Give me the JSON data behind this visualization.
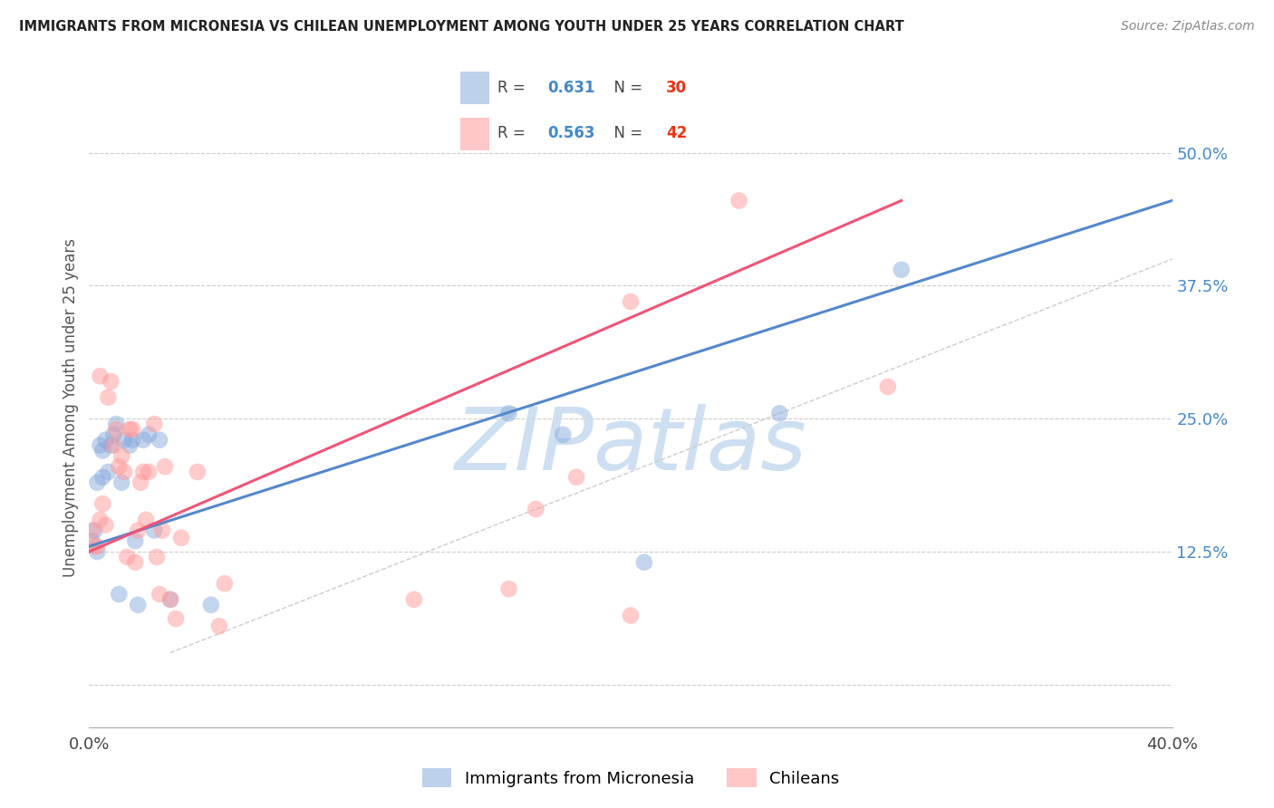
{
  "title": "IMMIGRANTS FROM MICRONESIA VS CHILEAN UNEMPLOYMENT AMONG YOUTH UNDER 25 YEARS CORRELATION CHART",
  "source": "Source: ZipAtlas.com",
  "ylabel": "Unemployment Among Youth under 25 years",
  "xlim": [
    0.0,
    0.4
  ],
  "ylim": [
    -0.04,
    0.56
  ],
  "xticks": [
    0.0,
    0.1,
    0.2,
    0.3,
    0.4
  ],
  "yticks_right": [
    0.0,
    0.125,
    0.25,
    0.375,
    0.5
  ],
  "ytick_labels_right": [
    "",
    "12.5%",
    "25.0%",
    "37.5%",
    "50.0%"
  ],
  "blue_R": "0.631",
  "blue_N": "30",
  "pink_R": "0.563",
  "pink_N": "42",
  "blue_color": "#88AADD",
  "pink_color": "#FF9999",
  "blue_legend": "Immigrants from Micronesia",
  "pink_legend": "Chileans",
  "blue_scatter_x": [
    0.001,
    0.002,
    0.003,
    0.003,
    0.004,
    0.005,
    0.005,
    0.006,
    0.007,
    0.008,
    0.009,
    0.01,
    0.011,
    0.012,
    0.013,
    0.015,
    0.016,
    0.017,
    0.018,
    0.02,
    0.022,
    0.024,
    0.026,
    0.03,
    0.045,
    0.155,
    0.175,
    0.205,
    0.255,
    0.3
  ],
  "blue_scatter_y": [
    0.135,
    0.145,
    0.125,
    0.19,
    0.225,
    0.22,
    0.195,
    0.23,
    0.2,
    0.225,
    0.235,
    0.245,
    0.085,
    0.19,
    0.23,
    0.225,
    0.23,
    0.135,
    0.075,
    0.23,
    0.235,
    0.145,
    0.23,
    0.08,
    0.075,
    0.255,
    0.235,
    0.115,
    0.255,
    0.39
  ],
  "pink_scatter_x": [
    0.001,
    0.002,
    0.003,
    0.004,
    0.004,
    0.005,
    0.006,
    0.007,
    0.008,
    0.009,
    0.01,
    0.011,
    0.012,
    0.013,
    0.014,
    0.015,
    0.016,
    0.017,
    0.018,
    0.019,
    0.02,
    0.021,
    0.022,
    0.024,
    0.025,
    0.026,
    0.027,
    0.028,
    0.03,
    0.032,
    0.034,
    0.04,
    0.048,
    0.05,
    0.12,
    0.155,
    0.165,
    0.18,
    0.2,
    0.2,
    0.24,
    0.295
  ],
  "pink_scatter_y": [
    0.145,
    0.13,
    0.13,
    0.155,
    0.29,
    0.17,
    0.15,
    0.27,
    0.285,
    0.225,
    0.24,
    0.205,
    0.215,
    0.2,
    0.12,
    0.24,
    0.24,
    0.115,
    0.145,
    0.19,
    0.2,
    0.155,
    0.2,
    0.245,
    0.12,
    0.085,
    0.145,
    0.205,
    0.08,
    0.062,
    0.138,
    0.2,
    0.055,
    0.095,
    0.08,
    0.09,
    0.165,
    0.195,
    0.065,
    0.36,
    0.455,
    0.28
  ],
  "blue_trend_x": [
    0.0,
    0.4
  ],
  "blue_trend_y": [
    0.13,
    0.455
  ],
  "pink_trend_x": [
    0.0,
    0.3
  ],
  "pink_trend_y": [
    0.125,
    0.455
  ],
  "ref_line_x": [
    0.03,
    0.5
  ],
  "ref_line_y": [
    0.03,
    0.5
  ]
}
